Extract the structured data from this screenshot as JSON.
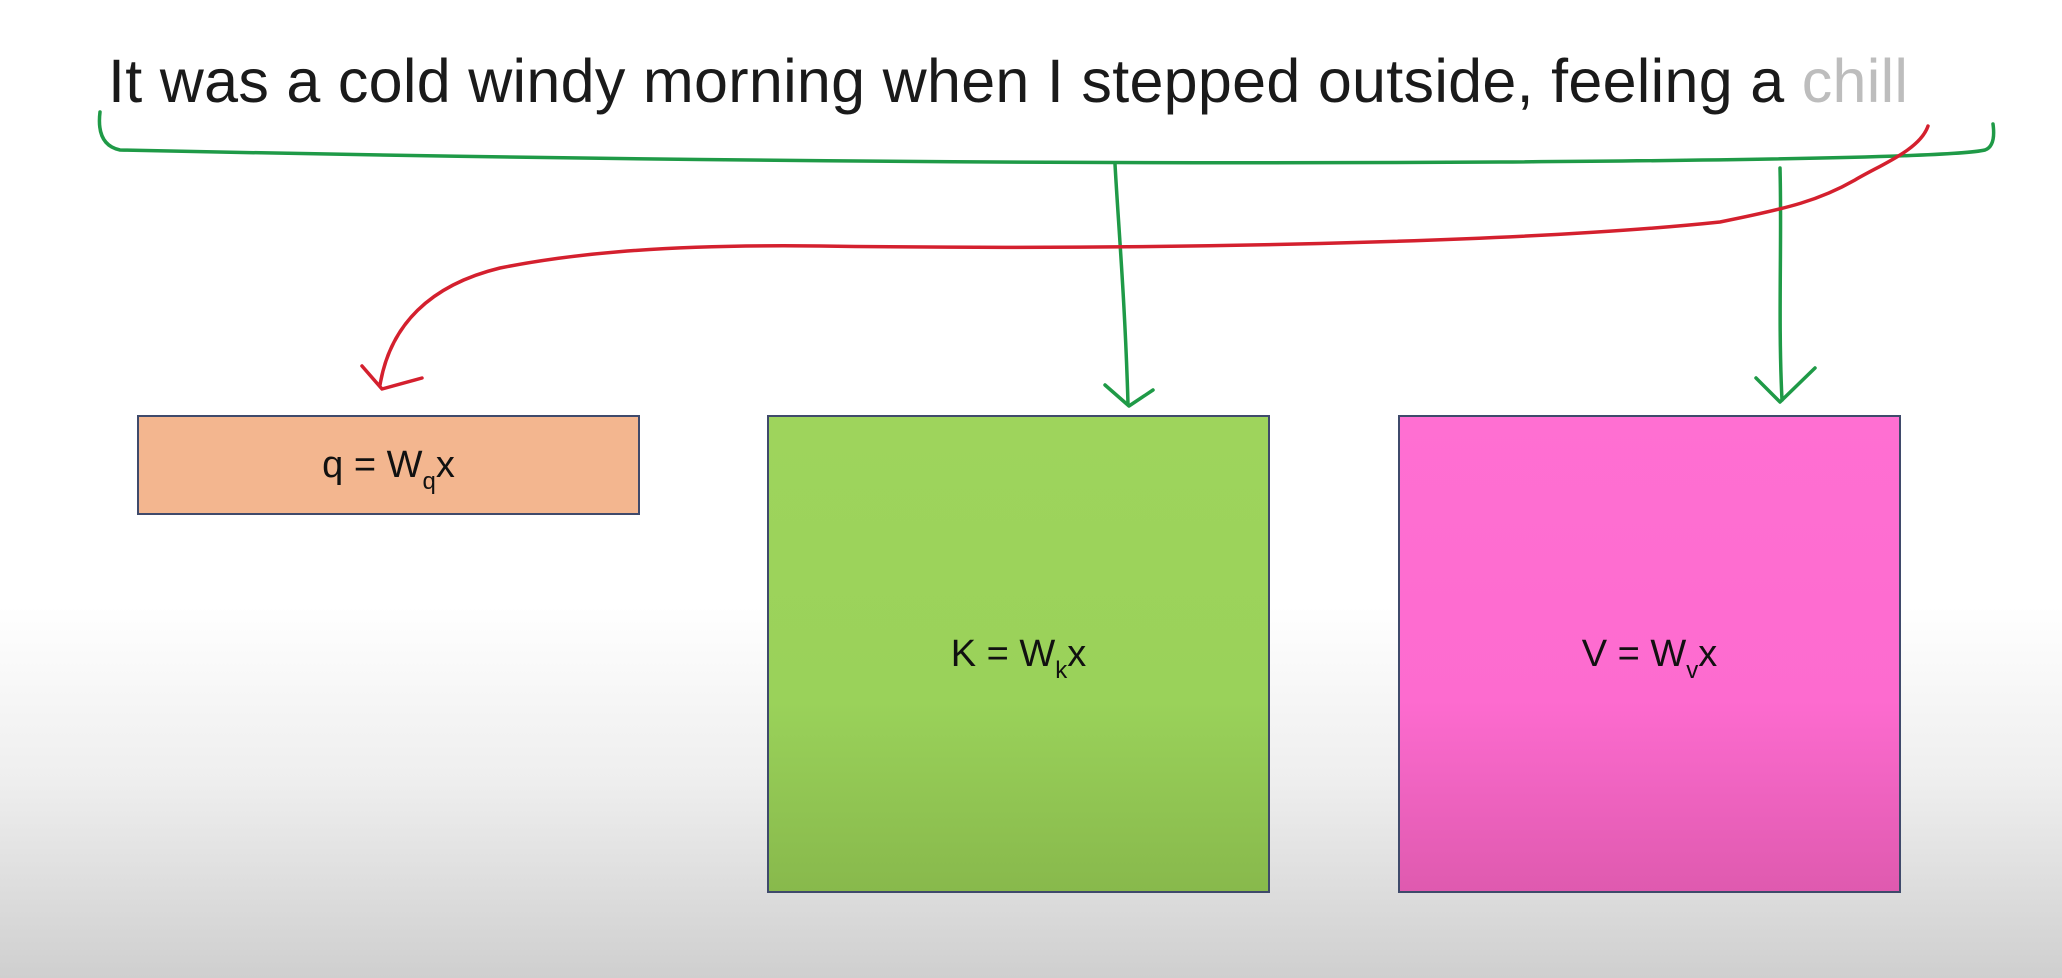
{
  "sentence": {
    "main": "It was a cold windy morning when I stepped outside, feeling a ",
    "focus_word": "chill"
  },
  "boxes": {
    "q": {
      "base": "q = W",
      "subscript": "q",
      "suffix": "x",
      "color": "#f3b68f"
    },
    "k": {
      "base": "K = W",
      "subscript": "k",
      "suffix": "x",
      "color": "#9ed45c"
    },
    "v": {
      "base": "V = W",
      "subscript": "v",
      "suffix": "x",
      "color": "#ff6fd2"
    }
  },
  "annotation_colors": {
    "context_brace": "#1f9a47",
    "query_arrow": "#d4202e"
  }
}
